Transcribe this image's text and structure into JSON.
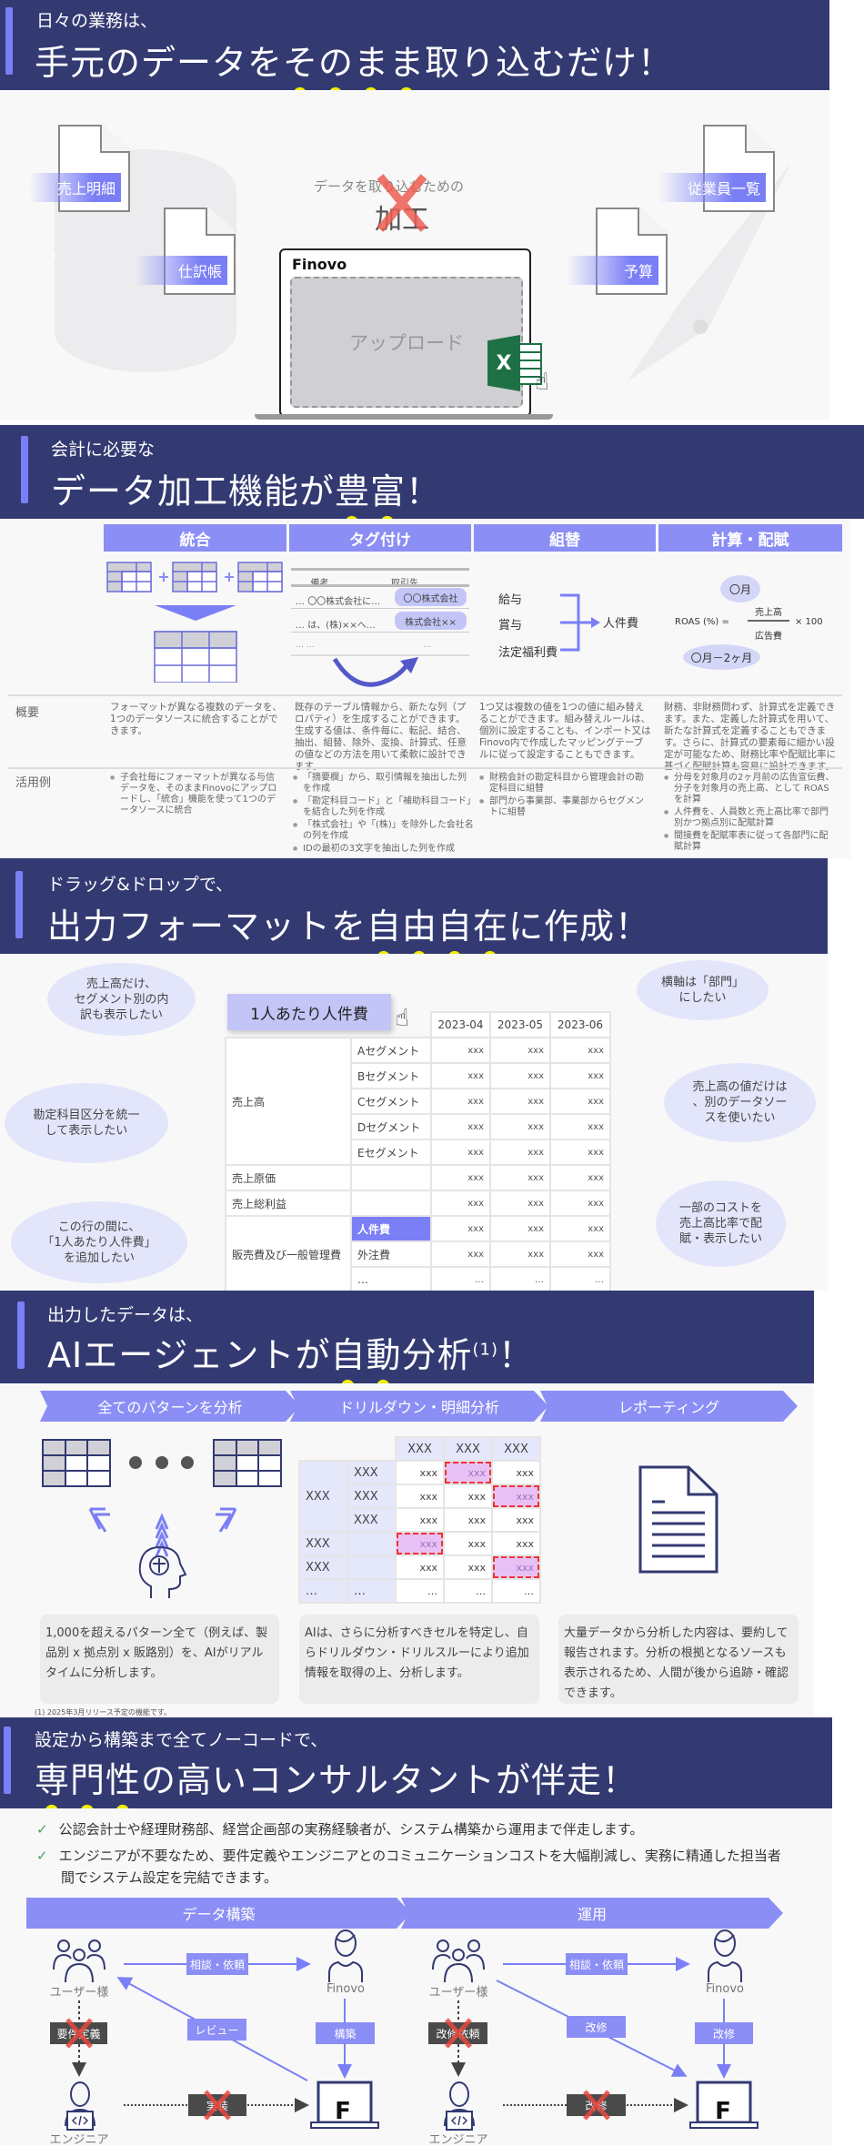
{
  "colors": {
    "header_bg": "#333a72",
    "accent": "#7b7ff5",
    "column_header": "#8b8ef5",
    "bubble": "#e3e5fb",
    "emphasis_dot": "#f2ec00",
    "cross": "#e8473f",
    "check": "#3aa55c"
  },
  "s1": {
    "subtitle": "日々の業務は、",
    "title_pre": "手元のデータを",
    "title_em": "そのまま",
    "title_post": "取り込むだけ！",
    "docs": [
      "売上明細",
      "仕訳帳",
      "従業員一覧",
      "予算"
    ],
    "process_caption": "データを取り込むための",
    "process_word": "加工",
    "app_name": "Finovo",
    "upload_label": "アップロード",
    "excel_letter": "X"
  },
  "s2": {
    "subtitle": "会計に必要な",
    "title_pre": "データ加工機能が",
    "title_em": "豊富",
    "title_post": "！",
    "columns": [
      "統合",
      "タグ付け",
      "組替",
      "計算・配賦"
    ],
    "tag_table": {
      "headers": [
        "…",
        "備考",
        "取引先"
      ],
      "rows": [
        [
          "…",
          "〇〇株式会社に…",
          "〇〇株式会社"
        ],
        [
          "…",
          "は、(株)××へ…",
          "株式会社××"
        ],
        [
          "…",
          "…",
          "…"
        ]
      ]
    },
    "regroup": {
      "items": [
        "給与",
        "賞与",
        "法定福利費"
      ],
      "target": "人件費"
    },
    "calc": {
      "month": "〇月",
      "lhs": "ROAS (%) =",
      "numerator": "売上高",
      "denominator": "広告費",
      "multiplier": "× 100",
      "month_offset": "〇月－2ヶ月"
    },
    "row_labels": [
      "概要",
      "活用例"
    ],
    "overview": [
      "フォーマットが異なる複数のデータを、1つのデータソースに統合することができます。",
      "既存のテーブル情報から、新たな列（プロパティ）を生成することができます。生成する値は、条件毎に、転記、結合、抽出、組替、除外、変換、計算式、任意の値などの方法を用いて柔軟に設計できます。",
      "1つ又は複数の値を1つの値に組み替えることができます。組み替えルールは、個別に設定することも、インポート又はFinovo内で作成したマッピングテーブルに従って設定することもできます。",
      "財務、非財務問わず、計算式を定義できます。また、定義した計算式を用いて、新たな計算式を定義することもできます。さらに、計算式の要素毎に細かい設定が可能なため、財務比率や配賦比率に基づく配賦計算も容易に設計できます。"
    ],
    "examples": [
      [
        "子会社毎にフォーマットが異なる与信データを、そのままFinovoにアップロードし、「統合」機能を使って1つのデータソースに統合"
      ],
      [
        "「摘要欄」から、取引情報を抽出した列を作成",
        "「勘定科目コード」と「補助科目コード」を結合した列を作成",
        "「株式会社」や「(株)」を除外した会社名の列を作成",
        "IDの最初の3文字を抽出した列を作成"
      ],
      [
        "財務会計の勘定科目から管理会計の勘定科目に組替",
        "部門から事業部、事業部からセグメントに組替"
      ],
      [
        "分母を対象月の2ヶ月前の広告宣伝費、分子を対象月の売上高、として ROASを計算",
        "人件費を、人員数と売上高比率で部門別かつ拠点別に配賦計算",
        "間接費を配賦率表に従って各部門に配賦計算"
      ]
    ]
  },
  "s3": {
    "subtitle": "ドラッグ&ドロップで、",
    "title_pre": "出力フォーマットを",
    "title_em": "自由自在",
    "title_post": "に作成！",
    "bubbles": [
      "売上高だけ、\nセグメント別の内\n訳も表示したい",
      "勘定科目区分を統一\nして表示したい",
      "この行の間に、\n「1人あたり人件費」\nを追加したい",
      "横軸は「部門」\nにしたい",
      "売上高の値だけは\n、別のデータソー\nスを使いたい",
      "一部のコストを\n売上高比率で配\n賦・表示したい"
    ],
    "table": {
      "periods": [
        "2023-04",
        "2023-05",
        "2023-06"
      ],
      "cell": "xxx",
      "ellipsis": "…",
      "sales": "売上高",
      "segments": [
        "Aセグメント",
        "Bセグメント",
        "Cセグメント",
        "Dセグメント",
        "Eセグメント"
      ],
      "cogs": "売上原価",
      "gross_profit": "売上総利益",
      "sga": "販売費及び一般管理費",
      "sga_items": [
        "人件費",
        "外注費"
      ]
    },
    "drag_item": "1人あたり人件費"
  },
  "s4": {
    "subtitle": "出力したデータは、",
    "title_pre": "AIエージェントが",
    "title_em": "自動",
    "title_post": "分析",
    "title_note": "(1)",
    "title_end": "！",
    "steps": [
      "全てのパターンを分析",
      "ドリルダウン・明細分析",
      "レポーティング"
    ],
    "drill": {
      "header": "XXX",
      "cell": "xxx",
      "ellipsis": "…"
    },
    "descriptions": [
      "1,000を超えるパターン全て（例えば、製品別 x 拠点別 x 販路別）を、AIがリアルタイムに分析します。",
      "AIは、さらに分析すべきセルを特定し、自らドリルダウン・ドリルスルーにより追加情報を取得の上、分析します。",
      "大量データから分析した内容は、要約して報告されます。分析の根拠となるソースも表示されるため、人間が後から追跡・確認できます。"
    ],
    "footnote": "(1) 2025年3月リリース予定の機能です。"
  },
  "s5": {
    "subtitle": "設定から構築まで全てノーコードで、",
    "title_pre": "",
    "title_em": "専門性",
    "title_post": "の高いコンサルタントが伴走！",
    "checks": [
      "公認会計士や経理財務部、経営企画部の実務経験者が、システム構築から運用まで伴走します。",
      "エンジニアが不要なため、要件定義やエンジニアとのコミュニケーションコストを大幅削減し、実務に精通した担当者間でシステム設定を完結できます。"
    ],
    "phases": [
      "データ構築",
      "運用"
    ],
    "build": {
      "user": "ユーザー様",
      "vendor": "Finovo",
      "engineer": "エンジニア",
      "request": "相談・依頼",
      "review": "レビュー",
      "construct": "構築",
      "requirements": "要件定義",
      "implement": "実装",
      "app_letter": "F"
    },
    "operate": {
      "user": "ユーザー様",
      "vendor": "Finovo",
      "engineer": "エンジニア",
      "request": "相談・依頼",
      "fix_diag": "改修",
      "fix": "改修",
      "fix_request": "改修依頼",
      "fix_engineer": "改修",
      "app_letter": "F"
    }
  }
}
